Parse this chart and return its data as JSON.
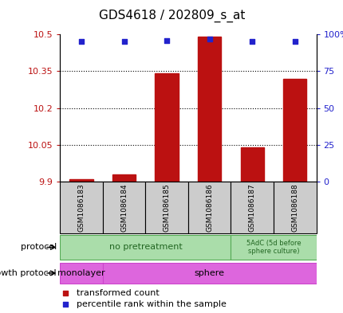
{
  "title": "GDS4618 / 202809_s_at",
  "samples": [
    "GSM1086183",
    "GSM1086184",
    "GSM1086185",
    "GSM1086186",
    "GSM1086187",
    "GSM1086188"
  ],
  "transformed_count": [
    9.91,
    9.93,
    10.34,
    10.49,
    10.04,
    10.32
  ],
  "percentile_rank": [
    95,
    95,
    96,
    97,
    95,
    95
  ],
  "ylim_left": [
    9.9,
    10.5
  ],
  "ylim_right": [
    0,
    100
  ],
  "yticks_left": [
    9.9,
    10.05,
    10.2,
    10.35,
    10.5
  ],
  "yticks_right": [
    0,
    25,
    50,
    75,
    100
  ],
  "bar_color": "#bb1111",
  "scatter_color": "#2222cc",
  "bar_width": 0.55,
  "background_color": "#ffffff",
  "plot_bg": "#ffffff",
  "protocol_label1": "no pretreatment",
  "protocol_label2": "5AdC (5d before\nsphere culture)",
  "protocol_color": "#aaddaa",
  "protocol_edge": "#55aa55",
  "growth_label1": "monolayer",
  "growth_label2": "sphere",
  "growth_color": "#dd66dd",
  "growth_edge": "#cc44cc",
  "legend_red": "transformed count",
  "legend_blue": "percentile rank within the sample",
  "title_fontsize": 11,
  "axis_fontsize": 8,
  "label_fontsize": 8,
  "sample_fontsize": 6.5,
  "legend_fontsize": 8
}
